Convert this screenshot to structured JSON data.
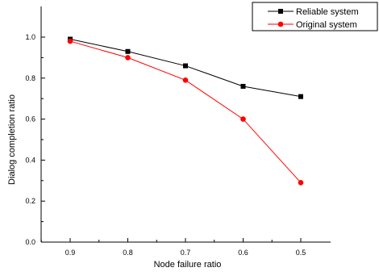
{
  "chart_data": {
    "type": "line",
    "x": [
      "0.9",
      "0.8",
      "0.7",
      "0.6",
      "0.5"
    ],
    "xlabel": "Node failure ratio",
    "ylabel": "Dialog completion ratio",
    "ylim": [
      0.0,
      1.0
    ],
    "yticks": [
      "0.0",
      "0.2",
      "0.4",
      "0.6",
      "0.8",
      "1.0"
    ],
    "grid": false,
    "legend_position": "top-right",
    "series": [
      {
        "name": "Reliable system",
        "values": [
          0.99,
          0.93,
          0.86,
          0.76,
          0.71
        ],
        "color": "#000000",
        "marker": "square"
      },
      {
        "name": "Original system",
        "values": [
          0.98,
          0.9,
          0.79,
          0.6,
          0.29
        ],
        "color": "#ff0000",
        "marker": "circle"
      }
    ]
  }
}
